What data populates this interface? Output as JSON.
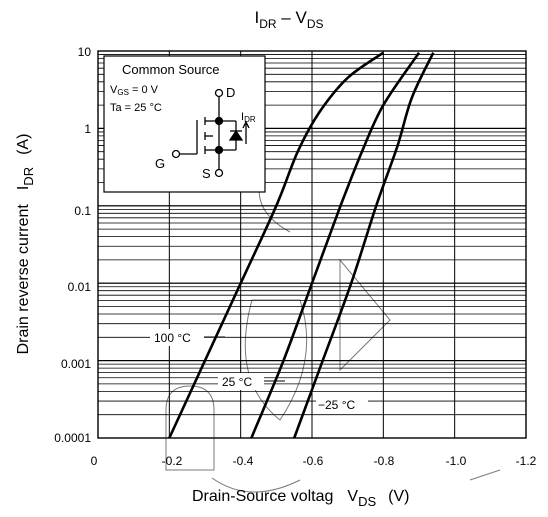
{
  "chart_data": {
    "type": "line",
    "title": {
      "main": "I",
      "sub": "DR",
      "sep": " – V",
      "sub2": "DS"
    },
    "xlabel": {
      "text": "Drain-Source voltag",
      "sym_main": "V",
      "sym_sub": "DS",
      "unit": "(V)"
    },
    "ylabel": {
      "text": "Drain reverse current",
      "sym_main": "I",
      "sym_sub": "DR",
      "unit": "(A)"
    },
    "x_ticks": [
      "0",
      "-0.2",
      "-0.4",
      "-0.6",
      "-0.8",
      "-1.0",
      "-1.2"
    ],
    "y_ticks": [
      "10",
      "1",
      "0.1",
      "0.01",
      "0.001",
      "0.0001"
    ],
    "xlim": [
      0,
      -1.2
    ],
    "ylim": [
      0.0001,
      10
    ],
    "yscale": "log",
    "grid": true,
    "inset": {
      "title": "Common Source",
      "vgs_main": "V",
      "vgs_sub": "GS",
      "vgs_val": " = 0 V",
      "ta": "Ta = 25 °C",
      "d": "D",
      "g": "G",
      "s": "S",
      "idr_main": "I",
      "idr_sub": "DR"
    },
    "series": [
      {
        "name": "100 °C",
        "x": [
          -0.2,
          -0.3,
          -0.4,
          -0.5,
          -0.56,
          -0.62,
          -0.7,
          -0.8
        ],
        "y": [
          0.0001,
          0.001,
          0.01,
          0.1,
          0.5,
          1.6,
          4.5,
          9.5
        ]
      },
      {
        "name": "25 °C",
        "x": [
          -0.43,
          -0.52,
          -0.6,
          -0.68,
          -0.74,
          -0.8,
          -0.9
        ],
        "y": [
          0.0001,
          0.001,
          0.01,
          0.1,
          0.5,
          2.0,
          9.5
        ]
      },
      {
        "name": "−25 °C",
        "x": [
          -0.55,
          -0.63,
          -0.71,
          -0.78,
          -0.84,
          -0.88,
          -0.94
        ],
        "y": [
          0.0001,
          0.001,
          0.01,
          0.1,
          0.6,
          2.5,
          9.5
        ]
      }
    ],
    "colors": {
      "line": "#000000",
      "grid": "#000000",
      "watermark": "#7a7a7a"
    }
  }
}
